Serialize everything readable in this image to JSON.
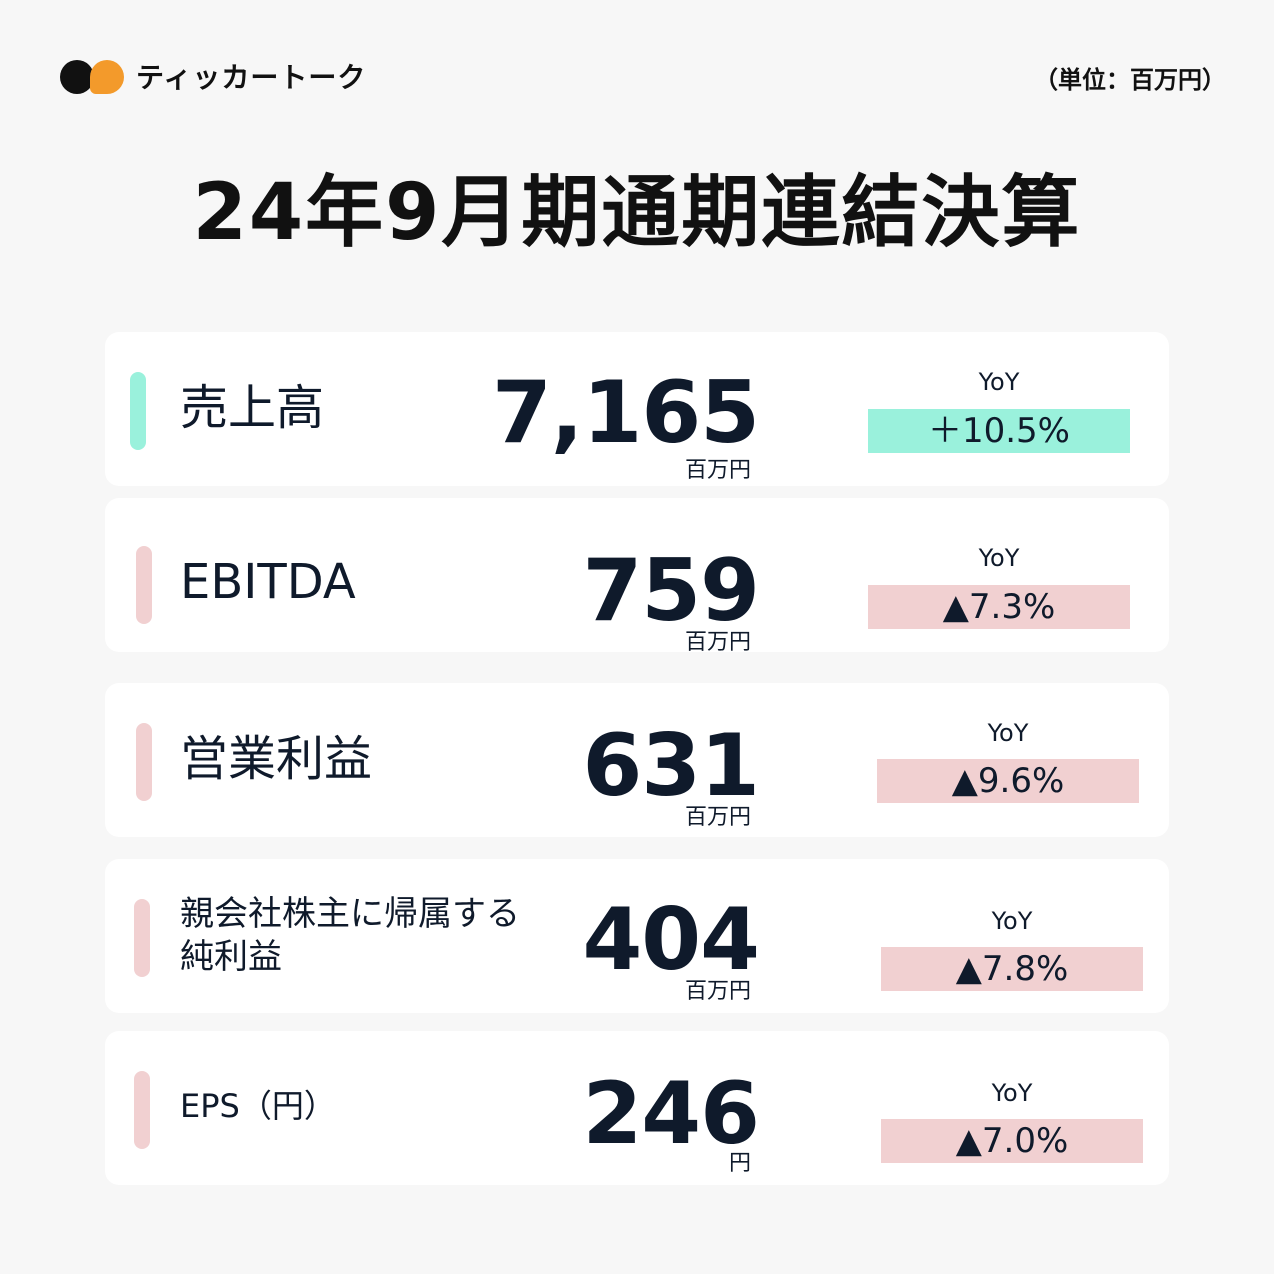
{
  "header": {
    "logo_text": "ティッカートーク",
    "unit_note": "（単位：百万円）"
  },
  "title": "24年9月期通期連結決算",
  "colors": {
    "positive": "#9af1dc",
    "negative": "#f1d0d1",
    "logo_orange": "#f39a2b",
    "text_dark": "#0f1a2b"
  },
  "metrics": [
    {
      "label": "売上高",
      "value": "7,165",
      "unit": "百万円",
      "yoy_label": "YoY",
      "yoy_value": "＋10.5%",
      "trend": "up"
    },
    {
      "label": "EBITDA",
      "value": "759",
      "unit": "百万円",
      "yoy_label": "YoY",
      "yoy_value": "▲7.3%",
      "trend": "down"
    },
    {
      "label": "営業利益",
      "value": "631",
      "unit": "百万円",
      "yoy_label": "YoY",
      "yoy_value": "▲9.6%",
      "trend": "down"
    },
    {
      "label_line1": "親会社株主に帰属する",
      "label_line2": "純利益",
      "value": "404",
      "unit": "百万円",
      "yoy_label": "YoY",
      "yoy_value": "▲7.8%",
      "trend": "down"
    },
    {
      "label": "EPS（円）",
      "value": "246",
      "unit": "円",
      "yoy_label": "YoY",
      "yoy_value": "▲7.0%",
      "trend": "down"
    }
  ]
}
